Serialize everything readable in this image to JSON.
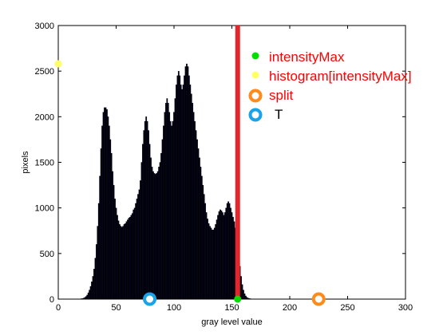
{
  "chart_data": {
    "type": "bar",
    "xlabel": "gray level value",
    "ylabel": "pixels",
    "xlim": [
      0,
      300
    ],
    "ylim": [
      0,
      3000
    ],
    "xticks": [
      0,
      50,
      100,
      150,
      200,
      250,
      300
    ],
    "yticks": [
      0,
      500,
      1000,
      1500,
      2000,
      2500,
      3000
    ],
    "grid": false,
    "legend_placement": "top-right",
    "legend": [
      {
        "label": "intensityMax",
        "marker": "dot",
        "color": "#00dd00",
        "text_color": "#ff0000"
      },
      {
        "label": "histogram[intensityMax]",
        "marker": "dot",
        "color": "#ffff66",
        "text_color": "#ff0000"
      },
      {
        "label": "split",
        "marker": "ring",
        "color": "#ff8c1a",
        "text_color": "#ff0000"
      },
      {
        "label": "T",
        "marker": "ring",
        "color": "#1aa3e6",
        "text_color": "#000000"
      }
    ],
    "histogram": {
      "x_start": 20,
      "color": "#000000",
      "values": [
        5,
        8,
        12,
        20,
        30,
        45,
        70,
        100,
        140,
        190,
        250,
        330,
        450,
        600,
        800,
        1050,
        1350,
        1650,
        1900,
        2050,
        2100,
        2100,
        2080,
        2000,
        1900,
        1750,
        1600,
        1400,
        1250,
        1100,
        1000,
        920,
        860,
        820,
        800,
        790,
        800,
        820,
        830,
        850,
        870,
        890,
        900,
        920,
        940,
        980,
        1000,
        1050,
        1100,
        1150,
        1200,
        1300,
        1500,
        1700,
        1850,
        1950,
        2000,
        1950,
        1850,
        1700,
        1550,
        1450,
        1400,
        1380,
        1370,
        1380,
        1400,
        1450,
        1500,
        1600,
        1750,
        1900,
        2050,
        2150,
        2200,
        2150,
        2050,
        1950,
        1900,
        1950,
        2050,
        2200,
        2350,
        2450,
        2500,
        2450,
        2350,
        2300,
        2350,
        2450,
        2550,
        2580,
        2550,
        2450,
        2350,
        2250,
        2150,
        2050,
        1950,
        1850,
        1750,
        1650,
        1550,
        1450,
        1350,
        1250,
        1150,
        1050,
        950,
        880,
        830,
        800,
        780,
        760,
        760,
        780,
        820,
        870,
        920,
        960,
        980,
        970,
        950,
        920,
        950,
        1000,
        1050,
        1070,
        1050,
        1000,
        950,
        900,
        850,
        780,
        700,
        600,
        480,
        360,
        250,
        160,
        100,
        60,
        35,
        20,
        12,
        8,
        5,
        3,
        2
      ]
    },
    "markers": {
      "intensityMax": {
        "x": 155,
        "y": 0
      },
      "histogram_intensityMax": {
        "x": 0,
        "y": 2580
      },
      "split": {
        "x": 225,
        "y": 0
      },
      "T": {
        "x": 79,
        "y": 0
      }
    },
    "vertical_line": {
      "x": 155,
      "color": "#e3262b"
    }
  }
}
